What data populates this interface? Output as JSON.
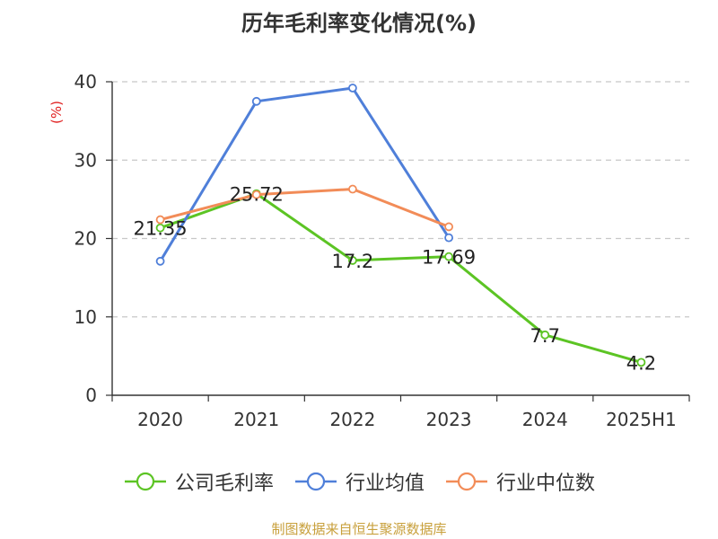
{
  "chart_data": {
    "type": "line",
    "title": "历年毛利率变化情况(%)",
    "ylabel": "(%)",
    "xlabel": "",
    "categories": [
      "2020",
      "2021",
      "2022",
      "2023",
      "2024",
      "2025H1"
    ],
    "ylim": [
      0,
      40
    ],
    "yticks": [
      0,
      10,
      20,
      30,
      40
    ],
    "ytick_labels": [
      "0",
      "10",
      "20",
      "30",
      "40"
    ],
    "grid": true,
    "legend_position": "bottom",
    "series": [
      {
        "name": "公司毛利率",
        "color": "#5cc424",
        "values": [
          21.35,
          25.72,
          17.2,
          17.69,
          7.7,
          4.2
        ],
        "data_labels": [
          "21.35",
          "25.72",
          "17.2",
          "17.69",
          "7.7",
          "4.2"
        ]
      },
      {
        "name": "行业均值",
        "color": "#4f7fd9",
        "values": [
          17.1,
          37.5,
          39.2,
          20.1,
          null,
          null
        ]
      },
      {
        "name": "行业中位数",
        "color": "#f28c58",
        "values": [
          22.4,
          25.6,
          26.3,
          21.5,
          null,
          null
        ]
      }
    ]
  },
  "source": "制图数据来自恒生聚源数据库"
}
